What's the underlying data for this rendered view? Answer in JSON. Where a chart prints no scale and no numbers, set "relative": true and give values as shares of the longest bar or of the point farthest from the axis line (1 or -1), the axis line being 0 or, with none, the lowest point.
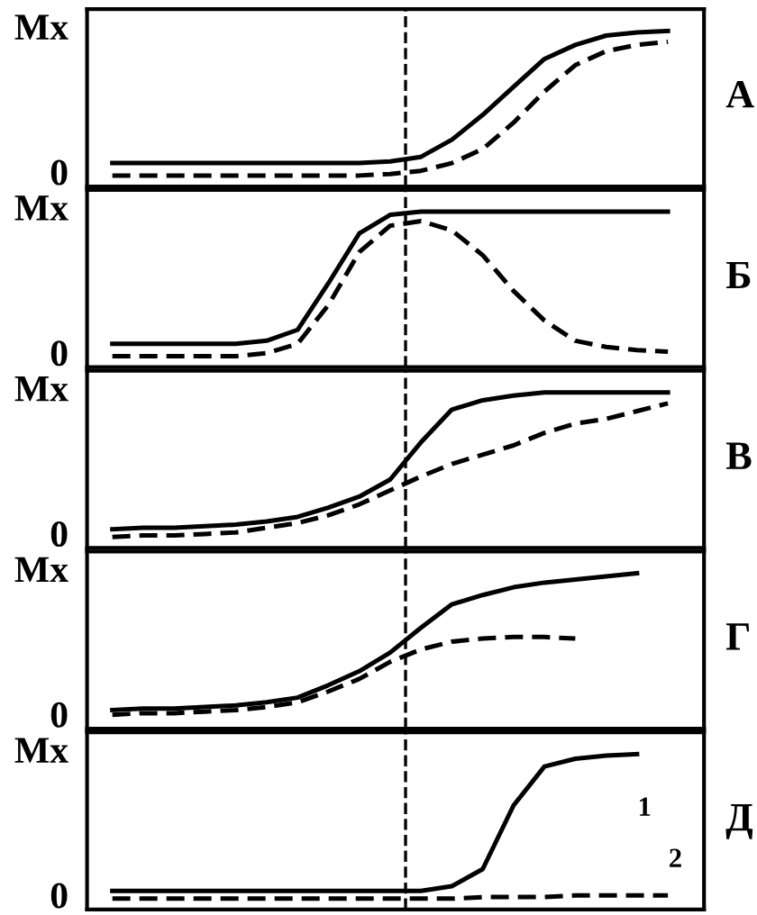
{
  "chart_data": [
    {
      "type": "line",
      "relative": true,
      "annotations": [
        "Mx",
        "0",
        "А"
      ],
      "categories": [
        null,
        null,
        null,
        null,
        null,
        null,
        null,
        null,
        null,
        null,
        null,
        null,
        null,
        null,
        null,
        null,
        null,
        null,
        null
      ],
      "marker": "none",
      "series": [
        {
          "color": "#000000",
          "line_style": "solid",
          "values": [
            0.15,
            0.15,
            0.15,
            0.15,
            0.15,
            0.15,
            0.15,
            0.15,
            0.15,
            0.16,
            0.19,
            0.3,
            0.46,
            0.64,
            0.82,
            0.91,
            0.97,
            0.99,
            1.0
          ]
        },
        {
          "color": "#000000",
          "line_style": "dashed",
          "values": [
            0.07,
            0.07,
            0.07,
            0.07,
            0.07,
            0.07,
            0.07,
            0.07,
            0.07,
            0.08,
            0.1,
            0.15,
            0.24,
            0.41,
            0.61,
            0.78,
            0.87,
            0.91,
            0.93
          ]
        }
      ]
    },
    {
      "type": "line",
      "relative": true,
      "annotations": [
        "Mx",
        "0",
        "Б"
      ],
      "categories": [
        null,
        null,
        null,
        null,
        null,
        null,
        null,
        null,
        null,
        null,
        null,
        null,
        null,
        null,
        null,
        null,
        null,
        null,
        null
      ],
      "marker": "none",
      "series": [
        {
          "color": "#000000",
          "line_style": "solid",
          "values": [
            0.15,
            0.15,
            0.15,
            0.15,
            0.15,
            0.17,
            0.24,
            0.54,
            0.86,
            0.98,
            1,
            1,
            1,
            1,
            1,
            1,
            1,
            1,
            1
          ]
        },
        {
          "color": "#000000",
          "line_style": "dashed",
          "values": [
            0.07,
            0.07,
            0.07,
            0.07,
            0.07,
            0.09,
            0.15,
            0.4,
            0.74,
            0.91,
            0.94,
            0.88,
            0.72,
            0.49,
            0.3,
            0.17,
            0.13,
            0.11,
            0.1
          ]
        }
      ]
    },
    {
      "type": "line",
      "relative": true,
      "annotations": [
        "Mx",
        "0",
        "В"
      ],
      "categories": [
        null,
        null,
        null,
        null,
        null,
        null,
        null,
        null,
        null,
        null,
        null,
        null,
        null,
        null,
        null,
        null,
        null,
        null,
        null
      ],
      "marker": "none",
      "series": [
        {
          "color": "#000000",
          "line_style": "solid",
          "values": [
            0.12,
            0.13,
            0.13,
            0.14,
            0.15,
            0.17,
            0.2,
            0.26,
            0.33,
            0.44,
            0.68,
            0.89,
            0.95,
            0.98,
            1,
            1,
            1,
            1,
            1
          ]
        },
        {
          "color": "#000000",
          "line_style": "dashed",
          "values": [
            0.07,
            0.08,
            0.08,
            0.09,
            0.1,
            0.13,
            0.16,
            0.21,
            0.28,
            0.37,
            0.46,
            0.54,
            0.6,
            0.66,
            0.74,
            0.8,
            0.83,
            0.88,
            0.93
          ]
        }
      ]
    },
    {
      "type": "line",
      "relative": true,
      "annotations": [
        "Mx",
        "0",
        "Г"
      ],
      "categories": [
        null,
        null,
        null,
        null,
        null,
        null,
        null,
        null,
        null,
        null,
        null,
        null,
        null,
        null,
        null,
        null,
        null,
        null,
        null
      ],
      "marker": "none",
      "series": [
        {
          "color": "#000000",
          "line_style": "solid",
          "values": [
            0.12,
            0.13,
            0.13,
            0.14,
            0.15,
            0.17,
            0.2,
            0.28,
            0.37,
            0.49,
            0.65,
            0.8,
            0.86,
            0.91,
            0.94,
            0.96,
            0.98,
            1.0,
            null
          ]
        },
        {
          "color": "#000000",
          "line_style": "dashed",
          "values": [
            0.09,
            0.1,
            0.1,
            0.11,
            0.12,
            0.14,
            0.17,
            0.24,
            0.32,
            0.43,
            0.51,
            0.56,
            0.58,
            0.59,
            0.59,
            0.58,
            null,
            null,
            null
          ]
        }
      ]
    },
    {
      "type": "line",
      "relative": true,
      "annotations": [
        "Mx",
        "0",
        "Д"
      ],
      "categories": [
        null,
        null,
        null,
        null,
        null,
        null,
        null,
        null,
        null,
        null,
        null,
        null,
        null,
        null,
        null,
        null,
        null,
        null,
        null
      ],
      "marker": "none",
      "series": [
        {
          "name": "1",
          "color": "#000000",
          "line_style": "solid",
          "values": [
            0.12,
            0.12,
            0.12,
            0.12,
            0.12,
            0.12,
            0.12,
            0.12,
            0.12,
            0.12,
            0.12,
            0.15,
            0.26,
            0.67,
            0.92,
            0.97,
            0.99,
            1.0,
            null
          ]
        },
        {
          "name": "2",
          "color": "#000000",
          "line_style": "dashed",
          "values": [
            0.07,
            0.07,
            0.07,
            0.07,
            0.07,
            0.07,
            0.07,
            0.07,
            0.07,
            0.07,
            0.07,
            0.07,
            0.08,
            0.08,
            0.08,
            0.09,
            0.09,
            0.09,
            0.09
          ]
        }
      ]
    }
  ]
}
